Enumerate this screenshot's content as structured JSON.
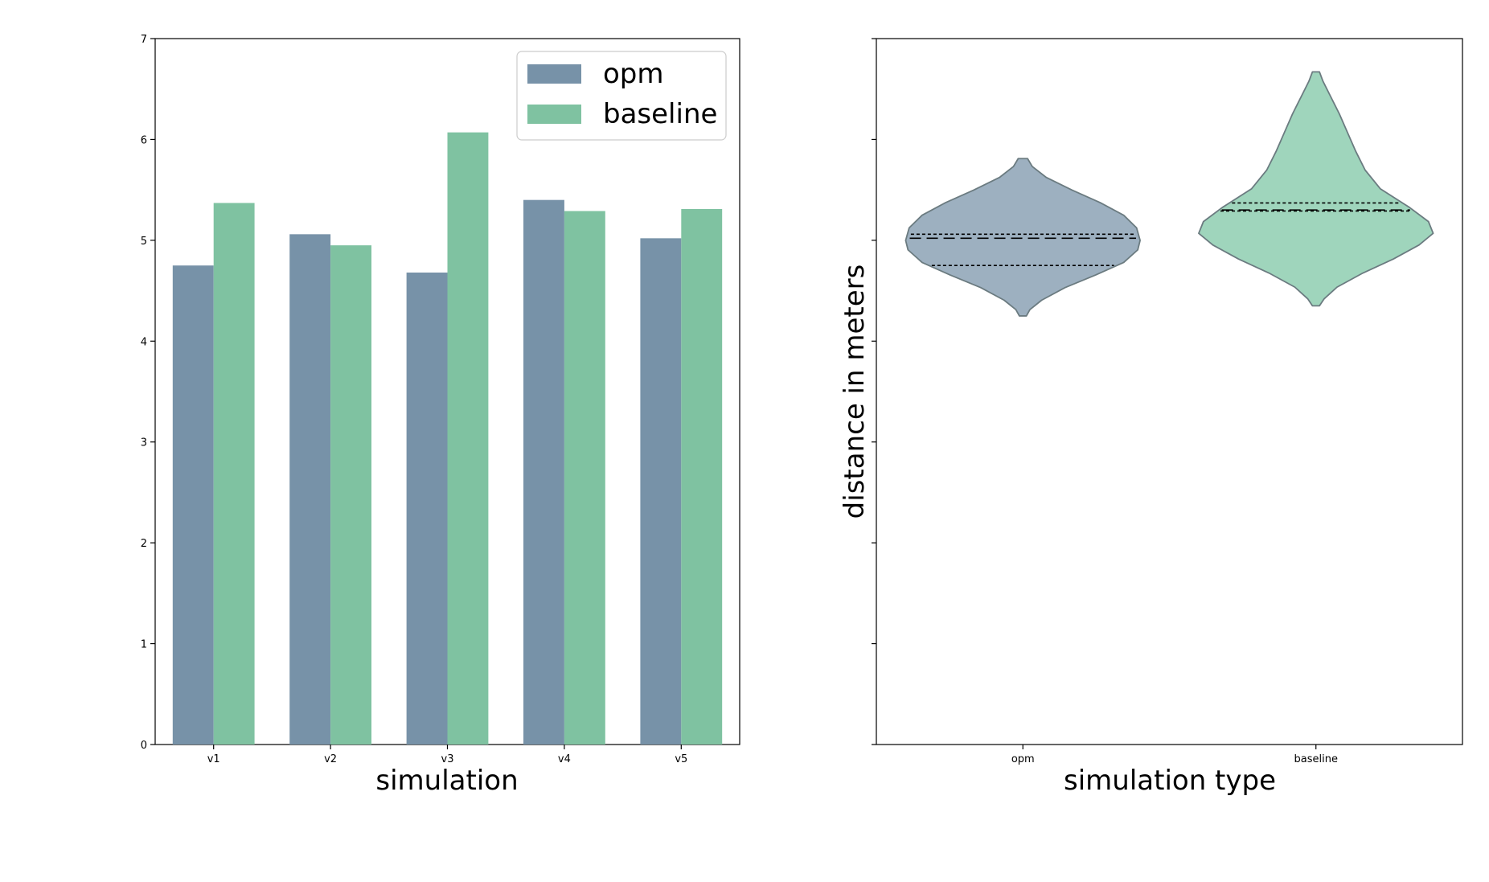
{
  "chart_data": [
    {
      "type": "bar",
      "categories": [
        "v1",
        "v2",
        "v3",
        "v4",
        "v5"
      ],
      "series": [
        {
          "name": "opm",
          "values": [
            4.75,
            5.06,
            4.68,
            5.4,
            5.02
          ],
          "color": "#7792a8"
        },
        {
          "name": "baseline",
          "values": [
            5.37,
            4.95,
            6.07,
            5.29,
            5.31
          ],
          "color": "#7fc2a1"
        }
      ],
      "title": "",
      "xlabel": "simulation",
      "ylabel": "",
      "ylim": [
        0,
        7
      ],
      "yticks": [
        "0",
        "1",
        "2",
        "3",
        "4",
        "5",
        "6",
        "7"
      ],
      "grid": false,
      "legend_position": "top-right"
    },
    {
      "type": "violin",
      "categories": [
        "opm",
        "baseline"
      ],
      "series": [
        {
          "name": "opm",
          "color": "#9db0c0",
          "min": 4.25,
          "max": 5.81,
          "quartiles": [
            4.75,
            5.02,
            5.06
          ]
        },
        {
          "name": "baseline",
          "color": "#9fd5bc",
          "min": 4.35,
          "max": 6.67,
          "quartiles": [
            5.29,
            5.3,
            5.37
          ]
        }
      ],
      "title": "",
      "xlabel": "simulation type",
      "ylabel": "distance in meters",
      "ylim": [
        0,
        7
      ],
      "yticks": [
        "",
        "",
        "",
        "",
        "",
        "",
        "",
        ""
      ],
      "grid": false
    }
  ]
}
